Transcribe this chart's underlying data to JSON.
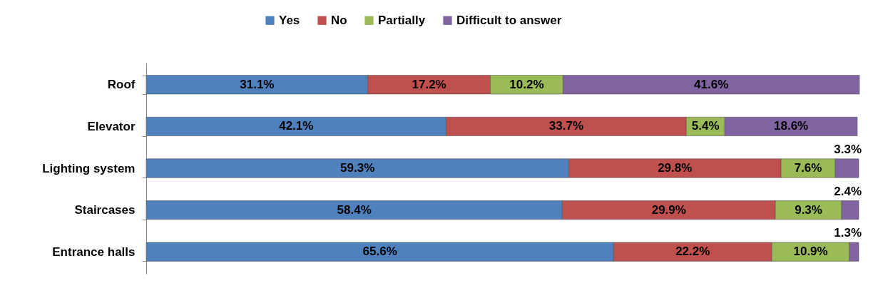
{
  "chart_data": {
    "type": "bar",
    "orientation": "horizontal",
    "stacked": true,
    "legend": "top",
    "categories": [
      "Roof",
      "Elevator",
      "Lighting system",
      "Staircases",
      "Entrance halls"
    ],
    "series": [
      {
        "name": "Yes",
        "color": "#4f81bd",
        "values": [
          31.1,
          42.1,
          59.3,
          58.4,
          65.6
        ],
        "value_labels": [
          "31.1%",
          "42.1%",
          "59.3%",
          "58.4%",
          "65.6%"
        ]
      },
      {
        "name": "No",
        "color": "#c0504d",
        "values": [
          17.2,
          33.7,
          29.8,
          29.9,
          22.2
        ],
        "value_labels": [
          "17.2%",
          "33.7%",
          "29.8%",
          "29.9%",
          "22.2%"
        ]
      },
      {
        "name": "Partially",
        "color": "#9bbb59",
        "values": [
          10.2,
          5.4,
          7.6,
          9.3,
          10.9
        ],
        "value_labels": [
          "10.2%",
          "5.4%",
          "7.6%",
          "9.3%",
          "10.9%"
        ]
      },
      {
        "name": "Difficult to answer",
        "color": "#8064a2",
        "values": [
          41.6,
          18.6,
          3.3,
          2.4,
          1.3
        ],
        "value_labels": [
          "41.6%",
          "18.6%",
          "3.3%",
          "2.4%",
          "1.3%"
        ]
      }
    ]
  }
}
